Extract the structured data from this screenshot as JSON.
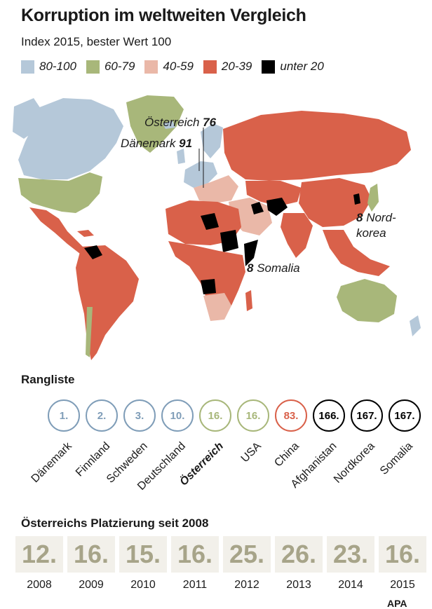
{
  "title": "Korruption im weltweiten Vergleich",
  "subtitle": "Index 2015, bester Wert 100",
  "legend": [
    {
      "label": "80-100",
      "color": "#b5c8d9"
    },
    {
      "label": "60-79",
      "color": "#a8b77a"
    },
    {
      "label": "40-59",
      "color": "#eab8a8"
    },
    {
      "label": "20-39",
      "color": "#d9614a"
    },
    {
      "label": "unter 20",
      "color": "#000000"
    }
  ],
  "map_labels": {
    "austria": {
      "name": "Österreich",
      "value": "76"
    },
    "denmark": {
      "name": "Dänemark",
      "value": "91"
    },
    "north_korea": {
      "value": "8",
      "line1": "Nord-",
      "line2": "korea"
    },
    "somalia": {
      "value": "8",
      "name": "Somalia"
    }
  },
  "ranking": {
    "title": "Rangliste",
    "items": [
      {
        "rank": "1.",
        "country": "Dänemark",
        "color": "#7f9db8"
      },
      {
        "rank": "2.",
        "country": "Finnland",
        "color": "#7f9db8"
      },
      {
        "rank": "3.",
        "country": "Schweden",
        "color": "#7f9db8"
      },
      {
        "rank": "10.",
        "country": "Deutschland",
        "color": "#7f9db8"
      },
      {
        "rank": "16.",
        "country": "Österreich",
        "color": "#a8b77a"
      },
      {
        "rank": "16.",
        "country": "USA",
        "color": "#a8b77a"
      },
      {
        "rank": "83.",
        "country": "China",
        "color": "#d9614a"
      },
      {
        "rank": "166.",
        "country": "Afghanistan",
        "color": "#000000"
      },
      {
        "rank": "167.",
        "country": "Nordkorea",
        "color": "#000000"
      },
      {
        "rank": "167.",
        "country": "Somalia",
        "color": "#000000"
      }
    ]
  },
  "history": {
    "title": "Österreichs Platzierung seit 2008",
    "items": [
      {
        "year": "2008",
        "place": "12."
      },
      {
        "year": "2009",
        "place": "16."
      },
      {
        "year": "2010",
        "place": "15."
      },
      {
        "year": "2011",
        "place": "16."
      },
      {
        "year": "2012",
        "place": "25."
      },
      {
        "year": "2013",
        "place": "26."
      },
      {
        "year": "2014",
        "place": "23."
      },
      {
        "year": "2015",
        "place": "16."
      }
    ]
  },
  "logo": "APA"
}
